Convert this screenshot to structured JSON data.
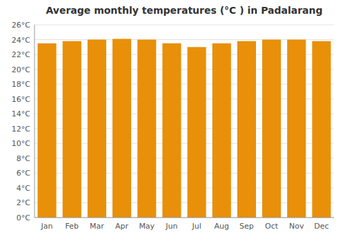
{
  "chart_data": {
    "type": "bar",
    "title": "Average monthly temperatures (°C ) in Padalarang",
    "categories": [
      "Jan",
      "Feb",
      "Mar",
      "Apr",
      "May",
      "Jun",
      "Jul",
      "Aug",
      "Sep",
      "Oct",
      "Nov",
      "Dec"
    ],
    "values": [
      23.5,
      23.8,
      24.0,
      24.1,
      24.0,
      23.5,
      23.0,
      23.5,
      23.8,
      24.0,
      24.0,
      23.8
    ],
    "color": "#E8900A",
    "ylim": [
      0,
      26
    ],
    "yticks": [
      {
        "value": 0,
        "label": "0°C"
      },
      {
        "value": 2,
        "label": "2°C"
      },
      {
        "value": 4,
        "label": "4°C"
      },
      {
        "value": 6,
        "label": "6°C"
      },
      {
        "value": 8,
        "label": "8°C"
      },
      {
        "value": 10,
        "label": "10°C"
      },
      {
        "value": 12,
        "label": "12°C"
      },
      {
        "value": 14,
        "label": "14°C"
      },
      {
        "value": 16,
        "label": "16°C"
      },
      {
        "value": 18,
        "label": "18°C"
      },
      {
        "value": 20,
        "label": "20°C"
      },
      {
        "value": 22,
        "label": "22°C"
      },
      {
        "value": 24,
        "label": "24°C"
      },
      {
        "value": 26,
        "label": "26°C"
      }
    ],
    "grid": true
  }
}
